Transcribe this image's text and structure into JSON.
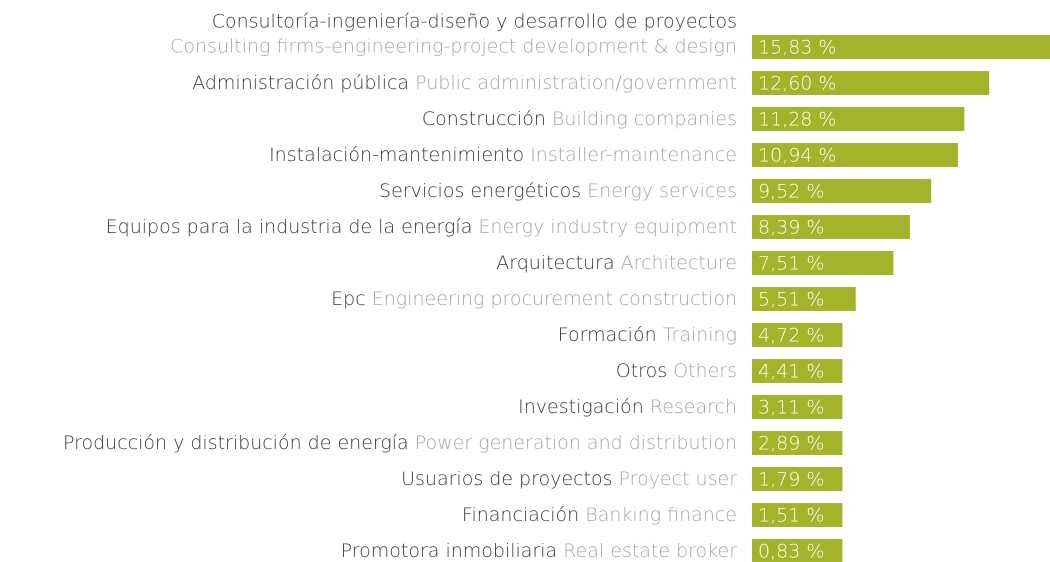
{
  "chart_data": {
    "type": "bar",
    "orientation": "horizontal",
    "categories": [
      "Consultoría-ingeniería-diseño y desarrollo de proyectos",
      "Administración pública",
      "Construcción",
      "Instalación-mantenimiento",
      "Servicios energéticos",
      "Equipos para la industria de la energía",
      "Arquitectura",
      "Epc",
      "Formación",
      "Otros",
      "Investigación",
      "Producción y distribución de energía",
      "Usuarios de proyectos",
      "Financiación",
      "Promotora inmobiliaria"
    ],
    "categories_en": [
      "Consulting firms-engineering-project development & design",
      "Public administration/government",
      "Building companies",
      "Installer-maintenance",
      "Energy services",
      "Energy industry equipment",
      "Architecture",
      "Engineering procurement construction",
      "Training",
      "Others",
      "Research",
      "Power generation and distribution",
      "Proyect user",
      "Banking finance",
      "Real estate broker"
    ],
    "values": [
      15.83,
      12.6,
      11.28,
      10.94,
      9.52,
      8.39,
      7.51,
      5.51,
      4.72,
      4.41,
      3.11,
      2.89,
      1.79,
      1.51,
      0.83
    ],
    "value_labels": [
      "15,83 %",
      "12,60 %",
      "11,28 %",
      "10,94 %",
      "9,52 %",
      "8,39 %",
      "7,51 %",
      "5,51 %",
      "4,72 %",
      "4,41 %",
      "3,11 %",
      "2,89 %",
      "1,79 %",
      "1,51 %",
      "0,83 %"
    ],
    "color": "#a3b42a"
  }
}
